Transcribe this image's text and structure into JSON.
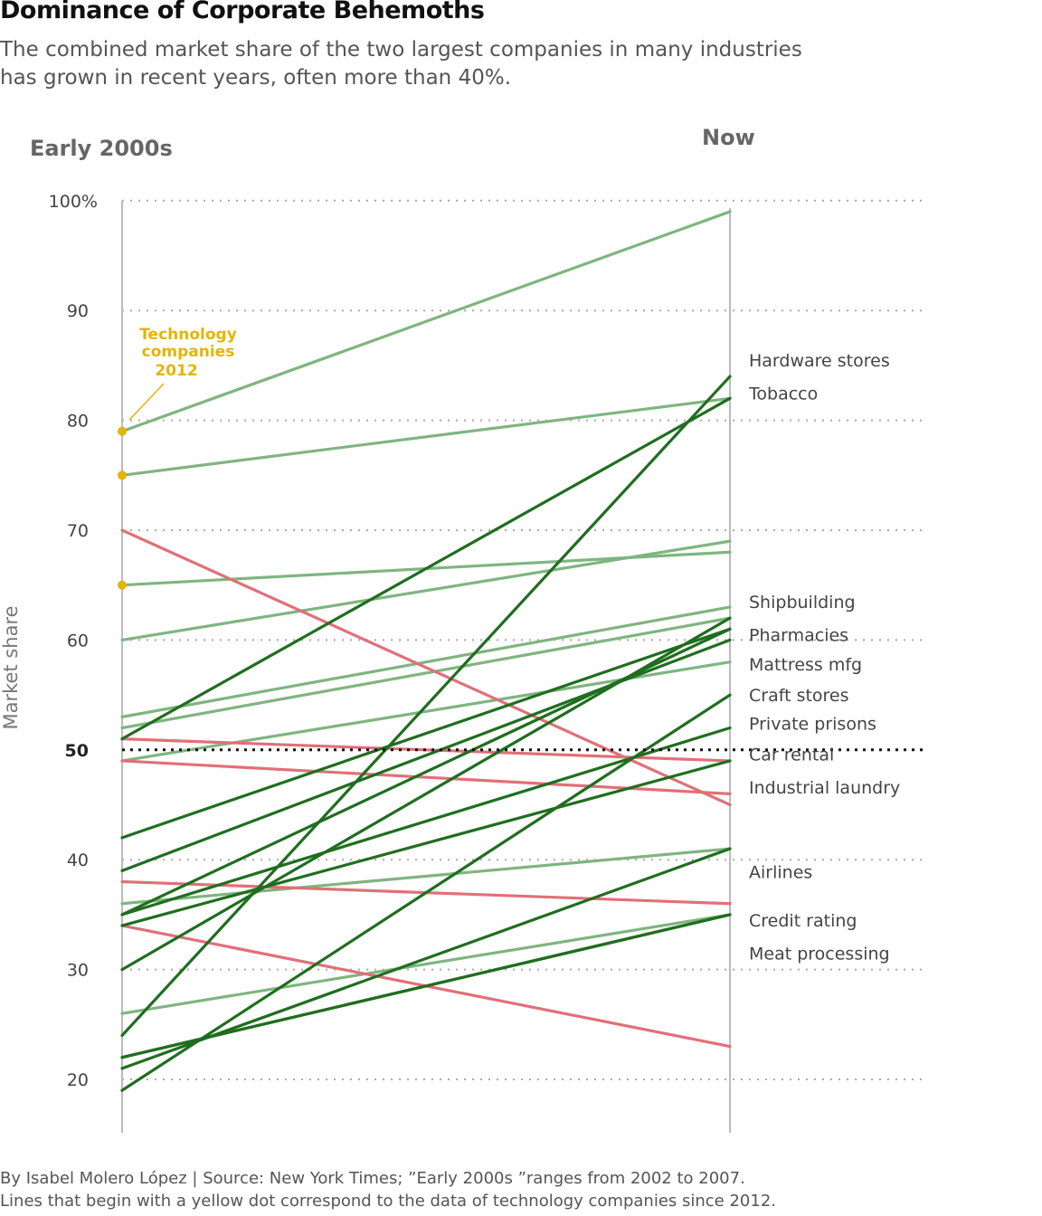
{
  "header": {
    "title": "Dominance of Corporate Behemoths",
    "subtitle_line1": "The combined market share of the two largest companies in many industries",
    "subtitle_line2": "has grown in recent years, often more than 40%."
  },
  "footer": {
    "line1": "By Isabel Molero López | Source: New York Times; ”Early 2000s ”ranges from 2002 to 2007.",
    "line2": "Lines that begin with a yellow dot correspond to the data of technology companies since 2012."
  },
  "colors": {
    "increase_strong": "#1f6e1f",
    "increase_light": "#7fb57f",
    "decrease": "#e07078",
    "tech_dot": "#e3b505",
    "axis": "#bbbbbb",
    "grid": "#aaaaaa",
    "reference": "#111111"
  },
  "chart_data": {
    "type": "slope",
    "x": [
      "Early 2000s",
      "Now"
    ],
    "ylabel": "Market share",
    "ylim": [
      15,
      100
    ],
    "yticks": [
      20,
      30,
      40,
      50,
      60,
      70,
      80,
      90,
      100
    ],
    "ytick_labels": [
      "20",
      "30",
      "40",
      "50",
      "60",
      "70",
      "80",
      "90",
      "100%"
    ],
    "reference_line": 50,
    "grid": "dotted horizontal",
    "annotation": {
      "line1": "Technology",
      "line2": "companies",
      "line3": "2012",
      "points_to": 79
    },
    "right_labels": [
      {
        "text": "Hardware stores",
        "y": 85.5
      },
      {
        "text": "Tobacco",
        "y": 82.5
      },
      {
        "text": "Shipbuilding",
        "y": 63.5
      },
      {
        "text": "Pharmacies",
        "y": 60.5
      },
      {
        "text": "Mattress mfg",
        "y": 57.8
      },
      {
        "text": "Craft stores",
        "y": 55.0
      },
      {
        "text": "Private prisons",
        "y": 52.4
      },
      {
        "text": "Car rental",
        "y": 49.6
      },
      {
        "text": "Industrial laundry",
        "y": 46.6
      },
      {
        "text": "Airlines",
        "y": 38.9
      },
      {
        "text": "Credit rating",
        "y": 34.5
      },
      {
        "text": "Meat processing",
        "y": 31.5
      }
    ],
    "series": [
      {
        "start": 79,
        "end": 99,
        "group": "light",
        "tech": true
      },
      {
        "start": 75,
        "end": 82,
        "group": "light",
        "tech": true
      },
      {
        "start": 65,
        "end": 68,
        "group": "light",
        "tech": true
      },
      {
        "start": 60,
        "end": 69,
        "group": "light"
      },
      {
        "start": 53,
        "end": 63,
        "group": "light"
      },
      {
        "start": 52,
        "end": 62,
        "group": "light"
      },
      {
        "start": 49,
        "end": 58,
        "group": "light"
      },
      {
        "start": 36,
        "end": 41,
        "group": "light"
      },
      {
        "start": 26,
        "end": 35,
        "group": "light"
      },
      {
        "start": 51,
        "end": 82,
        "group": "strong"
      },
      {
        "start": 24,
        "end": 84,
        "group": "strong"
      },
      {
        "start": 42,
        "end": 61,
        "group": "strong"
      },
      {
        "start": 39,
        "end": 60,
        "group": "strong"
      },
      {
        "start": 35,
        "end": 61,
        "group": "strong"
      },
      {
        "start": 34,
        "end": 49,
        "group": "strong"
      },
      {
        "start": 30,
        "end": 62,
        "group": "strong"
      },
      {
        "start": 19,
        "end": 55,
        "group": "strong"
      },
      {
        "start": 35,
        "end": 52,
        "group": "strong"
      },
      {
        "start": 21,
        "end": 41,
        "group": "strong"
      },
      {
        "start": 22,
        "end": 35,
        "group": "strong"
      },
      {
        "start": 22,
        "end": 35,
        "group": "strong"
      },
      {
        "start": 70,
        "end": 45,
        "group": "decrease"
      },
      {
        "start": 51,
        "end": 49,
        "group": "decrease"
      },
      {
        "start": 49,
        "end": 46,
        "group": "decrease"
      },
      {
        "start": 38,
        "end": 36,
        "group": "decrease"
      },
      {
        "start": 34,
        "end": 23,
        "group": "decrease"
      }
    ]
  }
}
